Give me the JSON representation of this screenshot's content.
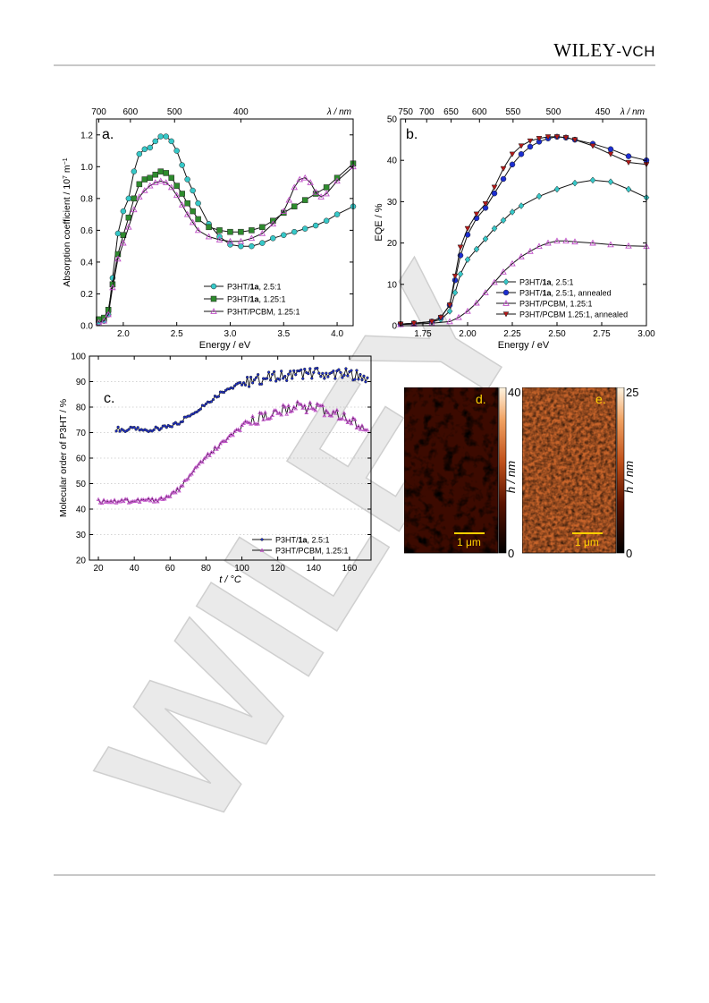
{
  "header": {
    "publisher_main": "Wiley",
    "publisher_sep": "-",
    "publisher_small": "VCH"
  },
  "watermark": {
    "text": "WILEY"
  },
  "panel_a": {
    "label": "a.",
    "xlabel": "Energy / eV",
    "ylabel": "Absorption coefficient / 10",
    "ylabel_exp": "7",
    "ylabel_unit": " m",
    "ylabel_exp2": "−1",
    "top_label": "λ / nm"
  },
  "panel_b": {
    "label": "b.",
    "xlabel": "Energy / eV",
    "ylabel": "EQE / %",
    "top_label": "λ / nm"
  },
  "panel_c": {
    "label": "c.",
    "xlabel": "t / °C",
    "ylabel": "Molecular order of P3HT / %"
  },
  "panel_d": {
    "label": "d.",
    "scale_label": "1 μm",
    "cbar_top": "40",
    "cbar_bottom": "0",
    "cbar_label": "h / nm"
  },
  "panel_e": {
    "label": "e.",
    "scale_label": "1 μm",
    "cbar_top": "25",
    "cbar_bottom": "0",
    "cbar_label": "h / nm"
  },
  "colors": {
    "cyan": "#36c8c8",
    "green": "#2e8b2e",
    "violet": "#c050c8",
    "blue": "#1c2ed0",
    "red": "#b21818",
    "afm_dark": "#2a0500",
    "afm_light": "#ffe0b0"
  },
  "chart_data": [
    {
      "type": "line",
      "panel": "a",
      "xlabel": "Energy / eV",
      "ylabel": "Absorption coefficient / 10^7 m^-1",
      "xlim": [
        1.75,
        4.15
      ],
      "ylim": [
        0.0,
        1.3
      ],
      "x_ticks": [
        2.0,
        2.5,
        3.0,
        3.5,
        4.0
      ],
      "x_tick_labels": [
        "2.0",
        "2.5",
        "3.0",
        "3.5",
        "4.0"
      ],
      "y_ticks": [
        0.0,
        0.2,
        0.4,
        0.6,
        0.8,
        1.0,
        1.2
      ],
      "y_tick_labels": [
        "0.0",
        "0.2",
        "0.4",
        "0.6",
        "0.8",
        "1.0",
        "1.2"
      ],
      "top_axis": {
        "label": "λ / nm",
        "ticks_nm": [
          700,
          600,
          500,
          400
        ],
        "tick_labels": [
          "700",
          "600",
          "500",
          "400"
        ]
      },
      "legend_position": "bottom-right",
      "series": [
        {
          "name": "P3HT/1a, 2.5:1",
          "label_parts": [
            "P3HT/",
            "1a",
            ", 2.5:1"
          ],
          "marker": "circle",
          "color": "#36c8c8",
          "x": [
            1.77,
            1.82,
            1.86,
            1.9,
            1.95,
            2.0,
            2.05,
            2.1,
            2.15,
            2.2,
            2.25,
            2.3,
            2.35,
            2.4,
            2.45,
            2.5,
            2.55,
            2.6,
            2.65,
            2.7,
            2.8,
            2.9,
            3.0,
            3.1,
            3.2,
            3.3,
            3.4,
            3.5,
            3.6,
            3.7,
            3.8,
            3.9,
            4.0,
            4.15
          ],
          "y": [
            0.02,
            0.03,
            0.07,
            0.3,
            0.58,
            0.72,
            0.8,
            0.97,
            1.08,
            1.11,
            1.12,
            1.16,
            1.19,
            1.19,
            1.16,
            1.1,
            1.01,
            0.92,
            0.85,
            0.77,
            0.64,
            0.56,
            0.51,
            0.5,
            0.5,
            0.52,
            0.55,
            0.57,
            0.59,
            0.61,
            0.63,
            0.66,
            0.7,
            0.75
          ]
        },
        {
          "name": "P3HT/1a, 1.25:1",
          "label_parts": [
            "P3HT/",
            "1a",
            ", 1.25:1"
          ],
          "marker": "square",
          "color": "#2e8b2e",
          "x": [
            1.77,
            1.82,
            1.86,
            1.9,
            1.95,
            2.0,
            2.05,
            2.1,
            2.15,
            2.2,
            2.25,
            2.3,
            2.35,
            2.4,
            2.45,
            2.5,
            2.55,
            2.6,
            2.65,
            2.7,
            2.8,
            2.9,
            3.0,
            3.1,
            3.2,
            3.3,
            3.4,
            3.5,
            3.6,
            3.7,
            3.8,
            3.9,
            4.0,
            4.15
          ],
          "y": [
            0.04,
            0.05,
            0.1,
            0.26,
            0.45,
            0.57,
            0.68,
            0.8,
            0.89,
            0.92,
            0.93,
            0.95,
            0.97,
            0.96,
            0.93,
            0.88,
            0.83,
            0.77,
            0.72,
            0.67,
            0.62,
            0.6,
            0.59,
            0.59,
            0.6,
            0.62,
            0.66,
            0.71,
            0.75,
            0.79,
            0.83,
            0.87,
            0.93,
            1.02
          ]
        },
        {
          "name": "P3HT/PCBM, 1.25:1",
          "label_parts": [
            "P3HT/PCBM, 1.25:1"
          ],
          "marker": "triangle",
          "color": "#c050c8",
          "x": [
            1.77,
            1.82,
            1.86,
            1.9,
            1.95,
            2.0,
            2.05,
            2.1,
            2.15,
            2.2,
            2.25,
            2.3,
            2.35,
            2.4,
            2.45,
            2.5,
            2.55,
            2.6,
            2.65,
            2.7,
            2.8,
            2.9,
            3.0,
            3.1,
            3.2,
            3.3,
            3.4,
            3.5,
            3.55,
            3.6,
            3.65,
            3.7,
            3.75,
            3.8,
            3.85,
            3.9,
            4.0,
            4.15
          ],
          "y": [
            0.02,
            0.03,
            0.07,
            0.24,
            0.42,
            0.52,
            0.62,
            0.73,
            0.81,
            0.85,
            0.88,
            0.9,
            0.91,
            0.9,
            0.87,
            0.82,
            0.76,
            0.7,
            0.65,
            0.6,
            0.56,
            0.54,
            0.53,
            0.53,
            0.55,
            0.58,
            0.64,
            0.72,
            0.79,
            0.87,
            0.92,
            0.93,
            0.9,
            0.84,
            0.81,
            0.83,
            0.91,
            1.0
          ]
        }
      ]
    },
    {
      "type": "line",
      "panel": "b",
      "xlabel": "Energy / eV",
      "ylabel": "EQE / %",
      "xlim": [
        1.625,
        3.0
      ],
      "ylim": [
        0,
        50
      ],
      "x_ticks": [
        1.75,
        2.0,
        2.25,
        2.5,
        2.75,
        3.0
      ],
      "x_tick_labels": [
        "1.75",
        "2.00",
        "2.25",
        "2.50",
        "2.75",
        "3.00"
      ],
      "y_ticks": [
        0,
        10,
        20,
        30,
        40,
        50
      ],
      "y_tick_labels": [
        "0",
        "10",
        "20",
        "30",
        "40",
        "50"
      ],
      "top_axis": {
        "label": "λ / nm",
        "ticks_nm": [
          750,
          700,
          650,
          600,
          550,
          500,
          450
        ],
        "tick_labels": [
          "750",
          "700",
          "650",
          "600",
          "550",
          "500",
          "450"
        ]
      },
      "legend_position": "bottom-right",
      "series": [
        {
          "name": "P3HT/1a, 2.5:1",
          "label_parts": [
            "P3HT/",
            "1a",
            ", 2.5:1"
          ],
          "marker": "diamond",
          "color": "#36c8c8",
          "x": [
            1.625,
            1.7,
            1.8,
            1.85,
            1.9,
            1.93,
            1.96,
            2.0,
            2.05,
            2.1,
            2.15,
            2.2,
            2.25,
            2.3,
            2.4,
            2.5,
            2.6,
            2.7,
            2.8,
            2.9,
            3.0
          ],
          "y": [
            0.4,
            0.6,
            0.9,
            1.5,
            3.5,
            8.0,
            12.5,
            16.0,
            18.5,
            21.0,
            23.5,
            25.5,
            27.5,
            29.0,
            31.3,
            33.0,
            34.5,
            35.2,
            34.8,
            33.0,
            31.0
          ]
        },
        {
          "name": "P3HT/1a, 2.5:1, annealed",
          "label_parts": [
            "P3HT/",
            "1a",
            ", 2.5:1, annealed"
          ],
          "marker": "circle",
          "color": "#1c2ed0",
          "x": [
            1.625,
            1.7,
            1.8,
            1.85,
            1.9,
            1.93,
            1.96,
            2.0,
            2.05,
            2.1,
            2.15,
            2.2,
            2.25,
            2.3,
            2.35,
            2.4,
            2.45,
            2.5,
            2.55,
            2.6,
            2.7,
            2.8,
            2.9,
            3.0
          ],
          "y": [
            0.4,
            0.6,
            1.0,
            2.0,
            5.0,
            11.0,
            17.0,
            22.0,
            26.0,
            28.5,
            32.0,
            35.5,
            39.0,
            41.5,
            43.3,
            44.5,
            45.3,
            45.7,
            45.5,
            45.0,
            44.0,
            42.7,
            41.0,
            40.0
          ]
        },
        {
          "name": "P3HT/PCBM, 1.25:1",
          "label_parts": [
            "P3HT/PCBM, 1.25:1"
          ],
          "marker": "triangle",
          "color": "#c050c8",
          "x": [
            1.625,
            1.7,
            1.8,
            1.9,
            1.95,
            2.0,
            2.05,
            2.1,
            2.15,
            2.2,
            2.25,
            2.3,
            2.35,
            2.4,
            2.45,
            2.5,
            2.55,
            2.6,
            2.7,
            2.8,
            2.9,
            3.0
          ],
          "y": [
            0.3,
            0.4,
            0.6,
            1.0,
            2.0,
            3.5,
            5.5,
            8.0,
            10.5,
            13.0,
            15.0,
            16.7,
            18.0,
            19.2,
            20.0,
            20.5,
            20.5,
            20.3,
            20.0,
            19.6,
            19.3,
            19.2
          ]
        },
        {
          "name": "P3HT/PCBM 1.25:1, annealed",
          "label_parts": [
            "P3HT/PCBM 1.25:1, annealed"
          ],
          "marker": "triangle-down",
          "color": "#b21818",
          "x": [
            1.625,
            1.7,
            1.8,
            1.85,
            1.9,
            1.93,
            1.96,
            2.0,
            2.05,
            2.1,
            2.15,
            2.2,
            2.25,
            2.3,
            2.35,
            2.4,
            2.45,
            2.5,
            2.55,
            2.6,
            2.7,
            2.8,
            2.9,
            3.0
          ],
          "y": [
            0.4,
            0.6,
            1.0,
            2.0,
            5.0,
            12.0,
            19.0,
            23.5,
            27.0,
            29.5,
            33.5,
            38.0,
            41.5,
            43.5,
            44.7,
            45.3,
            45.7,
            45.7,
            45.5,
            45.0,
            43.5,
            41.5,
            39.5,
            39.0
          ]
        }
      ]
    },
    {
      "type": "line",
      "panel": "c",
      "xlabel": "t / °C",
      "ylabel": "Molecular order of P3HT / %",
      "xlim": [
        15,
        172
      ],
      "ylim": [
        20,
        100
      ],
      "grid": "horizontal dotted",
      "x_ticks": [
        20,
        40,
        60,
        80,
        100,
        120,
        140,
        160
      ],
      "x_tick_labels": [
        "20",
        "40",
        "60",
        "80",
        "100",
        "120",
        "140",
        "160"
      ],
      "y_ticks": [
        20,
        30,
        40,
        50,
        60,
        70,
        80,
        90,
        100
      ],
      "y_tick_labels": [
        "20",
        "30",
        "40",
        "50",
        "60",
        "70",
        "80",
        "90",
        "100"
      ],
      "legend_position": "bottom-right",
      "series": [
        {
          "name": "P3HT/1a, 2.5:1",
          "label_parts": [
            "P3HT/",
            "1a",
            ", 2.5:1"
          ],
          "marker": "circle-small",
          "color": "#1c2ed0",
          "x": [
            30,
            35,
            40,
            45,
            50,
            55,
            60,
            65,
            70,
            75,
            80,
            85,
            90,
            95,
            100,
            105,
            110,
            115,
            120,
            125,
            130,
            135,
            140,
            145,
            150,
            155,
            160,
            165,
            170
          ],
          "y": [
            71.5,
            71.0,
            71.5,
            70.8,
            71.2,
            71.5,
            72.5,
            74.0,
            76.5,
            79.0,
            81.5,
            84.0,
            86.5,
            88.0,
            89.5,
            90.0,
            91.0,
            91.5,
            92.0,
            92.5,
            93.0,
            93.0,
            93.5,
            93.0,
            93.5,
            93.0,
            93.0,
            92.5,
            91.5
          ]
        },
        {
          "name": "P3HT/PCBM, 1.25:1",
          "label_parts": [
            "P3HT/PCBM, 1.25:1"
          ],
          "marker": "triangle-small",
          "color": "#c050c8",
          "x": [
            20,
            25,
            30,
            35,
            40,
            45,
            50,
            55,
            60,
            65,
            70,
            75,
            80,
            85,
            90,
            95,
            100,
            105,
            110,
            115,
            120,
            125,
            130,
            135,
            140,
            145,
            150,
            155,
            160,
            165,
            170
          ],
          "y": [
            43.0,
            43.2,
            43.0,
            43.5,
            43.0,
            43.5,
            43.5,
            44.0,
            45.0,
            48.0,
            52.0,
            56.5,
            60.5,
            63.5,
            66.5,
            69.5,
            72.0,
            74.0,
            76.0,
            77.0,
            78.0,
            79.0,
            80.0,
            80.0,
            79.5,
            78.5,
            77.5,
            77.0,
            75.0,
            72.5,
            71.0
          ]
        }
      ]
    }
  ]
}
